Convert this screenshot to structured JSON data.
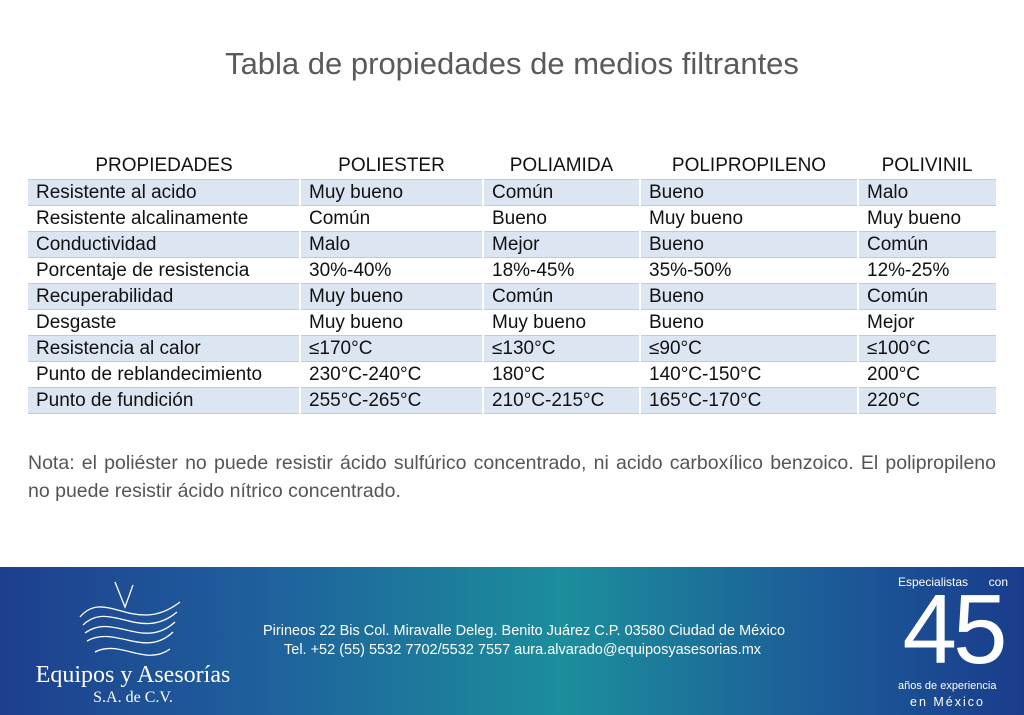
{
  "title": "Tabla de propiedades de medios filtrantes",
  "table": {
    "header": [
      "PROPIEDADES",
      "POLIESTER",
      "POLIAMIDA",
      "POLIPROPILENO",
      "POLIVINIL"
    ],
    "rows": [
      [
        "Resistente al acido",
        "Muy bueno",
        "Común",
        "Bueno",
        "Malo"
      ],
      [
        "Resistente alcalinamente",
        "Común",
        "Bueno",
        "Muy bueno",
        "Muy bueno"
      ],
      [
        "Conductividad",
        "Malo",
        "Mejor",
        "Bueno",
        "Común"
      ],
      [
        "Porcentaje de resistencia",
        "30%-40%",
        "18%-45%",
        "35%-50%",
        "12%-25%"
      ],
      [
        "Recuperabilidad",
        "Muy bueno",
        "Común",
        "Bueno",
        "Común"
      ],
      [
        "Desgaste",
        "Muy bueno",
        "Muy bueno",
        "Bueno",
        "Mejor"
      ],
      [
        "Resistencia al calor",
        "≤170°C",
        "≤130°C",
        "≤90°C",
        "≤100°C"
      ],
      [
        "Punto de reblandecimiento",
        "230°C-240°C",
        "180°C",
        "140°C-150°C",
        "200°C"
      ],
      [
        "Punto de fundición",
        "255°C-265°C",
        "210°C-215°C",
        "165°C-170°C",
        "220°C"
      ]
    ]
  },
  "note": "Nota: el poliéster no puede resistir ácido sulfúrico concentrado, ni acido carboxílico benzoico. El polipropileno no puede resistir ácido nítrico concentrado.",
  "footer": {
    "company": "Equipos y Asesorías",
    "company_suffix": "S.A. de C.V.",
    "address": "Pirineos 22 Bis Col. Miravalle Deleg. Benito Juárez C.P. 03580 Ciudad de México",
    "contact": "Tel. +52 (55) 5532 7702/5532 7557 aura.alvarado@equiposyasesorias.mx",
    "badge": {
      "top": "Especialistas con",
      "number": "45",
      "bottom": "años de experiencia",
      "place": "en México"
    }
  }
}
